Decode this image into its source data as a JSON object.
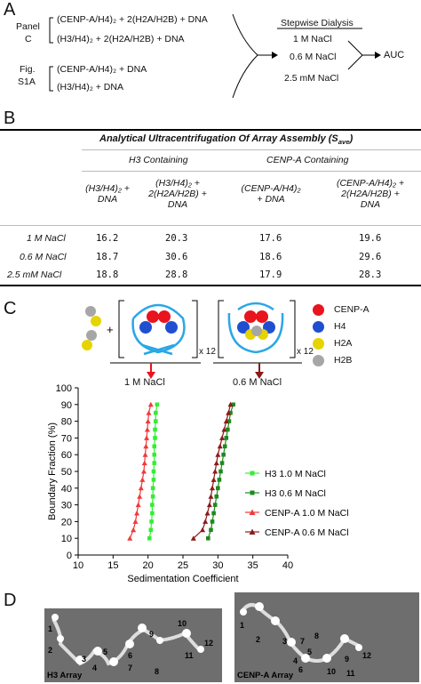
{
  "panelA": {
    "letter": "A",
    "group1_label_line1": "Panel",
    "group1_label_line2": "C",
    "group1_row1": "(CENP-A/H4)₂ + 2(H2A/H2B) + DNA",
    "group1_row2": "(H3/H4)₂ + 2(H2A/H2B) + DNA",
    "group2_label_line1": "Fig.",
    "group2_label_line2": "S1A",
    "group2_row1": "(CENP-A/H4)₂ + DNA",
    "group2_row2": "(H3/H4)₂ + DNA",
    "dialysis_title": "Stepwise Dialysis",
    "step1": "1 M NaCl",
    "step2": "0.6 M NaCl",
    "step3": "2.5 mM NaCl",
    "result": "AUC"
  },
  "panelB": {
    "letter": "B",
    "title": "Analytical Ultracentrifugation Of Array Assembly (S",
    "title_sub": "ave",
    "title_end": ")",
    "group_h3": "H3 Containing",
    "group_cenpa": "CENP-A Containing",
    "col1_l1": "(H3/H4)₂ +",
    "col1_l2": "DNA",
    "col2_l1": "(H3/H4)₂ +",
    "col2_l2": "2(H2A/H2B) +",
    "col2_l3": "DNA",
    "col3_l1": "(CENP-A/H4)₂",
    "col3_l2": "+ DNA",
    "col4_l1": "(CENP-A/H4)₂ +",
    "col4_l2": "2(H2A/H2B) +",
    "col4_l3": "DNA",
    "rows": [
      {
        "label": "1 M NaCl",
        "v1": "16.2",
        "v2": "20.3",
        "v3": "17.6",
        "v4": "19.6"
      },
      {
        "label": "0.6 M NaCl",
        "v1": "18.7",
        "v2": "30.6",
        "v3": "18.6",
        "v4": "29.6"
      },
      {
        "label": "2.5 mM NaCl",
        "v1": "18.8",
        "v2": "28.8",
        "v3": "17.9",
        "v4": "28.3"
      }
    ]
  },
  "panelC": {
    "letter": "C",
    "x12_left": "x 12",
    "x12_right": "x 12",
    "arrow_label_left": "1 M NaCl",
    "arrow_label_right": "0.6 M NaCl",
    "key": [
      {
        "name": "CENP-A",
        "color": "#e8141e"
      },
      {
        "name": "H4",
        "color": "#1f4fd0"
      },
      {
        "name": "H2A",
        "color": "#e6d400"
      },
      {
        "name": "H2B",
        "color": "#a6a6a6"
      }
    ],
    "arrow_left_color": "#e8141e",
    "arrow_right_color": "#8b1a1a"
  },
  "chart_data": {
    "type": "scatter",
    "xlabel": "Sedimentation Coefficient",
    "ylabel": "Boundary Fraction (%)",
    "xlim": [
      10,
      40
    ],
    "ylim": [
      0,
      100
    ],
    "xticks": [
      10,
      15,
      20,
      25,
      30,
      35,
      40
    ],
    "yticks": [
      0,
      10,
      20,
      30,
      40,
      50,
      60,
      70,
      80,
      90,
      100
    ],
    "grid": false,
    "legend_position": "right",
    "y": [
      10,
      15,
      20,
      25,
      30,
      35,
      40,
      45,
      50,
      55,
      60,
      65,
      70,
      75,
      80,
      85,
      90
    ],
    "series": [
      {
        "name": "H3 1.0 M NaCl",
        "color": "#33ee33",
        "marker": "square",
        "x": [
          20.2,
          20.4,
          20.5,
          20.6,
          20.6,
          20.7,
          20.7,
          20.8,
          20.8,
          20.9,
          20.9,
          20.9,
          21.0,
          21.0,
          21.1,
          21.1,
          21.3
        ]
      },
      {
        "name": "H3 0.6 M NaCl",
        "color": "#1d8a1d",
        "marker": "square",
        "x": [
          28.6,
          29.0,
          29.2,
          29.4,
          29.6,
          29.8,
          30.0,
          30.2,
          30.4,
          30.6,
          30.8,
          31.0,
          31.2,
          31.4,
          31.6,
          31.8,
          32.2
        ]
      },
      {
        "name": "CENP-A 1.0 M NaCl",
        "color": "#f03a3a",
        "marker": "triangle",
        "x": [
          17.4,
          17.9,
          18.2,
          18.4,
          18.6,
          18.8,
          19.0,
          19.2,
          19.4,
          19.5,
          19.6,
          19.7,
          19.8,
          19.9,
          20.0,
          20.1,
          20.4
        ]
      },
      {
        "name": "CENP-A 0.6 M NaCl",
        "color": "#8b1a1a",
        "marker": "triangle",
        "x": [
          26.5,
          27.8,
          28.2,
          28.5,
          28.8,
          29.0,
          29.2,
          29.4,
          29.6,
          29.8,
          30.0,
          30.3,
          30.6,
          30.9,
          31.2,
          31.5,
          31.8
        ]
      }
    ]
  },
  "panelD": {
    "letter": "D",
    "left_label": "H3 Array",
    "right_label": "CENP-A Array",
    "left_numbers": [
      "1",
      "2",
      "3",
      "4",
      "5",
      "6",
      "7",
      "8",
      "9",
      "10",
      "11",
      "12"
    ],
    "right_numbers": [
      "1",
      "2",
      "3",
      "4",
      "5",
      "6",
      "7",
      "8",
      "9",
      "10",
      "11",
      "12"
    ]
  }
}
